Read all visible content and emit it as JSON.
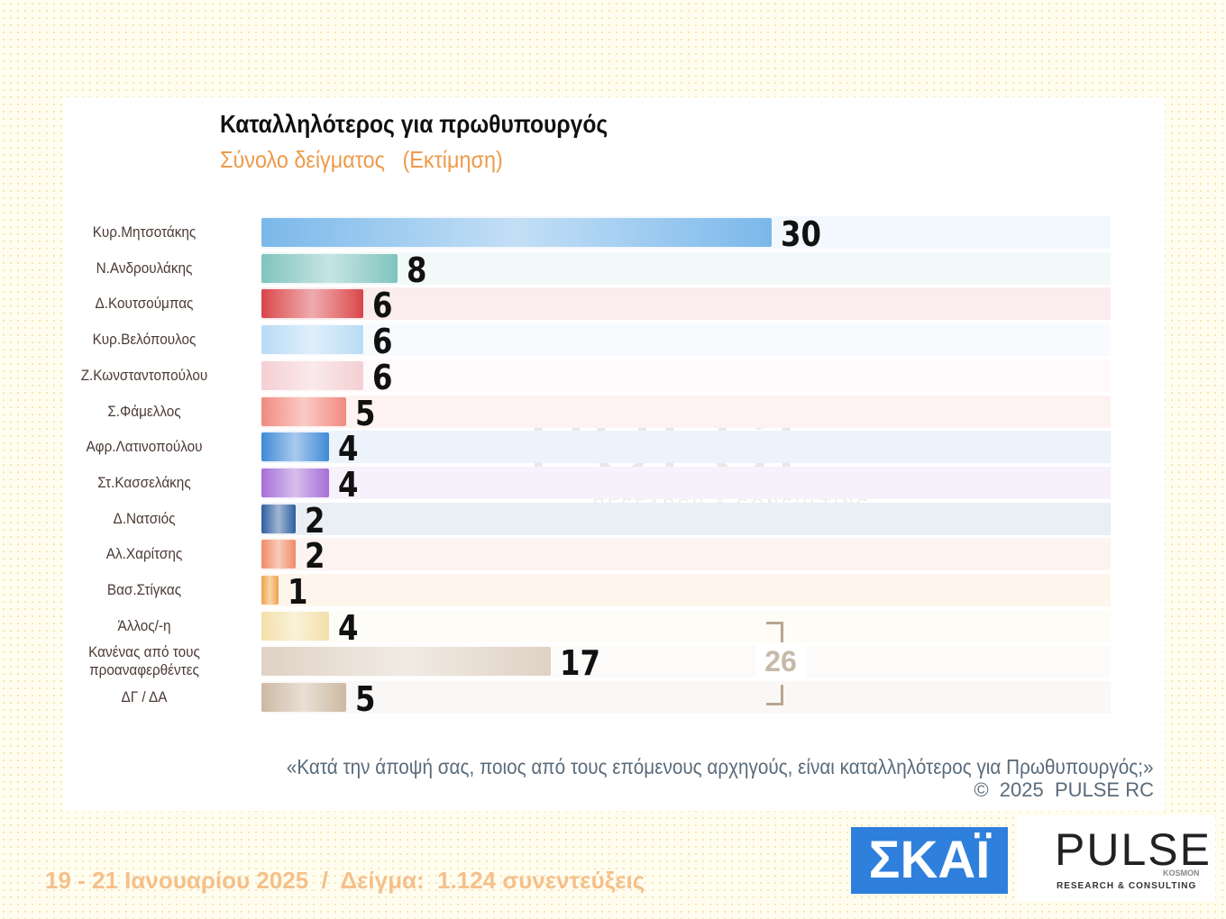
{
  "chart_data": {
    "type": "bar",
    "orientation": "horizontal",
    "title": "Καταλληλότερος για πρωθυπουργός",
    "subtitle": "Σύνολο δείγματος   (Εκτίμηση)",
    "categories": [
      "Κυρ.Μητσοτάκης",
      "Ν.Ανδρουλάκης",
      "Δ.Κουτσούμπας",
      "Κυρ.Βελόπουλος",
      "Ζ.Κωνσταντοπούλου",
      "Σ.Φάμελλος",
      "Αφρ.Λατινοπούλου",
      "Στ.Κασσελάκης",
      "Δ.Νατσιός",
      "Αλ.Χαρίτσης",
      "Βασ.Στίγκας",
      "Άλλος/-η",
      "Κανένας από τους προαναφερθέντες",
      "ΔΓ / ΔΑ"
    ],
    "values": [
      30,
      8,
      6,
      6,
      6,
      5,
      4,
      4,
      2,
      2,
      1,
      4,
      17,
      5
    ],
    "colors": [
      "#7ab8ea",
      "#7fc4bf",
      "#d8434b",
      "#b9dbf5",
      "#f4cfd3",
      "#f08a80",
      "#3d8ad6",
      "#a66fd6",
      "#2e5f9e",
      "#ef8a66",
      "#f0a040",
      "#f3e0aa",
      "#e0d2c4",
      "#cdb9a2"
    ],
    "bracket_total": 26,
    "question": "«Κατά την άποψή σας, ποιος από τους επόμενους αρχηγούς, είναι καταλληλότερος για Πρωθυπουργός;»",
    "copyright": "©  2025  PULSE RC",
    "footer": "19 - 21 Ιανουαρίου 2025  /  Δείγμα:  1.124 συνεντεύξεις",
    "logos": {
      "skai": "ΣΚΑΪ",
      "pulse": "PULSE",
      "pulse_sub": "RESEARCH & CONSULTING",
      "kosmon": "KOSMON"
    }
  }
}
